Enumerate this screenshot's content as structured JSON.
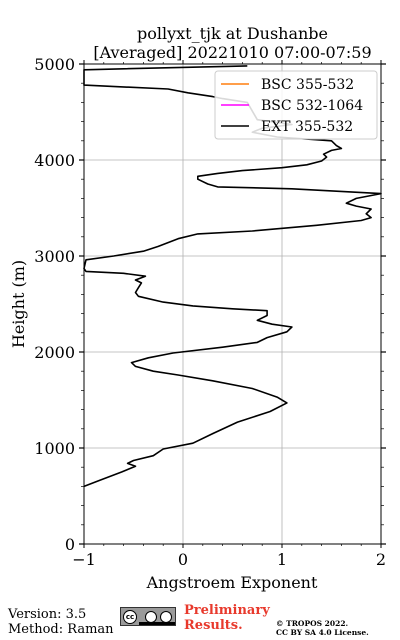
{
  "header": {
    "title_line1": "pollyxt_tjk at Dushanbe",
    "title_line2": "[Averaged] 20221010 07:00-07:59"
  },
  "chart_data": {
    "type": "line",
    "title": "pollyxt_tjk at Dushanbe [Averaged] 20221010 07:00-07:59",
    "xlabel": "Angstroem Exponent",
    "ylabel": "Height (m)",
    "xlim": [
      -1,
      2
    ],
    "ylim": [
      0,
      5000
    ],
    "xticks": [
      "−1",
      "0",
      "1",
      "2"
    ],
    "yticks": [
      "0",
      "1000",
      "2000",
      "3000",
      "4000",
      "5000"
    ],
    "grid": true,
    "legend_position": "top-right",
    "series": [
      {
        "name": "BSC 355-532",
        "color": "#ff7f0e",
        "points": []
      },
      {
        "name": "BSC 532-1064",
        "color": "#ff00ff",
        "points": []
      },
      {
        "name": "EXT 355-532",
        "color": "#000000",
        "points": [
          [
            -1.0,
            600
          ],
          [
            -0.85,
            660
          ],
          [
            -0.62,
            750
          ],
          [
            -0.48,
            810
          ],
          [
            -0.56,
            840
          ],
          [
            -0.5,
            870
          ],
          [
            -0.3,
            920
          ],
          [
            -0.2,
            990
          ],
          [
            0.1,
            1050
          ],
          [
            0.3,
            1150
          ],
          [
            0.55,
            1270
          ],
          [
            0.88,
            1380
          ],
          [
            1.05,
            1470
          ],
          [
            0.95,
            1530
          ],
          [
            0.7,
            1620
          ],
          [
            0.3,
            1700
          ],
          [
            -0.05,
            1760
          ],
          [
            -0.3,
            1800
          ],
          [
            -0.48,
            1850
          ],
          [
            -0.52,
            1890
          ],
          [
            -0.35,
            1940
          ],
          [
            -0.1,
            1990
          ],
          [
            0.4,
            2050
          ],
          [
            0.75,
            2100
          ],
          [
            0.85,
            2150
          ],
          [
            1.05,
            2210
          ],
          [
            1.1,
            2260
          ],
          [
            0.9,
            2290
          ],
          [
            0.75,
            2330
          ],
          [
            0.85,
            2380
          ],
          [
            0.85,
            2430
          ],
          [
            0.5,
            2450
          ],
          [
            0.1,
            2480
          ],
          [
            -0.2,
            2520
          ],
          [
            -0.45,
            2580
          ],
          [
            -0.48,
            2620
          ],
          [
            -0.45,
            2670
          ],
          [
            -0.42,
            2720
          ],
          [
            -0.48,
            2750
          ],
          [
            -0.38,
            2790
          ],
          [
            -0.6,
            2820
          ],
          [
            -0.98,
            2840
          ],
          [
            -1.0,
            2870
          ],
          [
            -0.98,
            2960
          ],
          [
            -0.7,
            3000
          ],
          [
            -0.4,
            3050
          ],
          [
            -0.25,
            3100
          ],
          [
            -0.05,
            3180
          ],
          [
            0.15,
            3230
          ],
          [
            0.7,
            3260
          ],
          [
            1.35,
            3320
          ],
          [
            1.8,
            3370
          ],
          [
            1.9,
            3400
          ],
          [
            1.85,
            3440
          ],
          [
            1.9,
            3490
          ],
          [
            1.75,
            3520
          ],
          [
            1.65,
            3550
          ],
          [
            1.75,
            3600
          ],
          [
            2.0,
            3650
          ],
          [
            1.1,
            3700
          ],
          [
            0.35,
            3720
          ],
          [
            0.25,
            3750
          ],
          [
            0.15,
            3800
          ],
          [
            0.15,
            3830
          ],
          [
            0.35,
            3860
          ],
          [
            0.6,
            3890
          ],
          [
            1.0,
            3920
          ],
          [
            1.25,
            3950
          ],
          [
            1.4,
            3990
          ],
          [
            1.45,
            4030
          ],
          [
            1.42,
            4060
          ],
          [
            1.5,
            4100
          ],
          [
            1.6,
            4120
          ],
          [
            1.55,
            4150
          ],
          [
            1.5,
            4200
          ],
          [
            0.95,
            4240
          ],
          [
            0.7,
            4290
          ],
          [
            0.8,
            4330
          ],
          [
            1.1,
            4370
          ],
          [
            0.75,
            4420
          ],
          [
            0.65,
            4600
          ],
          [
            0.4,
            4640
          ],
          [
            0.3,
            4660
          ],
          [
            0.05,
            4700
          ],
          [
            -0.15,
            4740
          ],
          [
            -1.0,
            4780
          ],
          [
            -1.0,
            4940
          ],
          [
            -0.6,
            4950
          ],
          [
            0.65,
            4980
          ]
        ]
      }
    ]
  },
  "footer": {
    "version": "Version: 3.5",
    "method": "Method: Raman",
    "cc_label": "cc",
    "preliminary_line1": "Preliminary",
    "preliminary_line2": "Results.",
    "copyright_line1": "© TROPOS 2022.",
    "copyright_line2": "CC BY SA 4.0 License."
  }
}
